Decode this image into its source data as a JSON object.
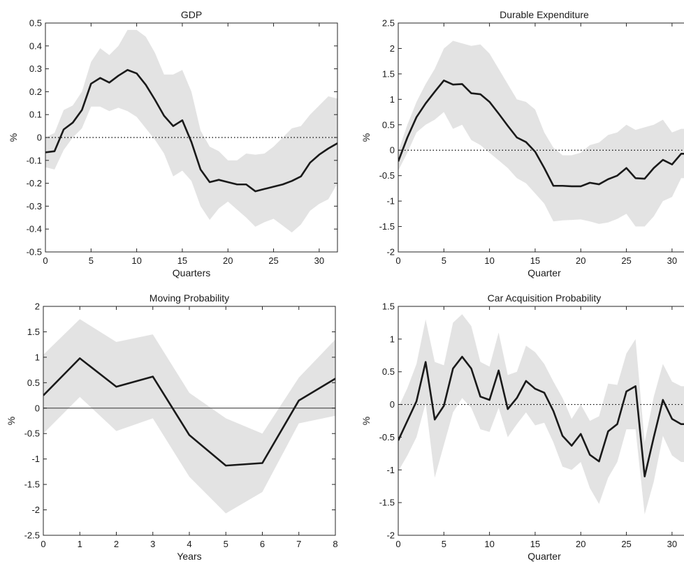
{
  "chart_data": [
    {
      "type": "line",
      "title": "GDP",
      "xlabel": "Quarters",
      "ylabel": "%",
      "xlim": [
        0,
        32
      ],
      "ylim": [
        -0.5,
        0.5
      ],
      "xticks": [
        0,
        5,
        10,
        15,
        20,
        25,
        30
      ],
      "yticks": [
        -0.5,
        -0.4,
        -0.3,
        -0.2,
        -0.1,
        0,
        0.1,
        0.2,
        0.3,
        0.4,
        0.5
      ],
      "ytick_labels": [
        "-0.5",
        "-0.4",
        "-0.3",
        "-0.2",
        "-0.1",
        "0",
        "0.1",
        "0.2",
        "0.3",
        "0.4",
        "0.5"
      ],
      "zero_line": "dotted",
      "grid": false,
      "x": [
        0,
        1,
        2,
        3,
        4,
        5,
        6,
        7,
        8,
        9,
        10,
        11,
        12,
        13,
        14,
        15,
        16,
        17,
        18,
        19,
        20,
        21,
        22,
        23,
        24,
        25,
        26,
        27,
        28,
        29,
        30,
        31,
        32
      ],
      "series": [
        {
          "values": [
            -0.065,
            -0.06,
            0.035,
            0.065,
            0.12,
            0.235,
            0.26,
            0.24,
            0.27,
            0.295,
            0.28,
            0.23,
            0.165,
            0.095,
            0.05,
            0.075,
            -0.02,
            -0.14,
            -0.195,
            -0.185,
            -0.195,
            -0.205,
            -0.205,
            -0.235,
            -0.225,
            -0.215,
            -0.205,
            -0.19,
            -0.17,
            -0.11,
            -0.075,
            -0.048,
            -0.025
          ]
        }
      ],
      "band": {
        "upper": [
          0.0,
          0.02,
          0.12,
          0.14,
          0.2,
          0.33,
          0.39,
          0.36,
          0.4,
          0.47,
          0.47,
          0.44,
          0.37,
          0.275,
          0.275,
          0.295,
          0.2,
          0.03,
          -0.04,
          -0.06,
          -0.1,
          -0.1,
          -0.07,
          -0.075,
          -0.07,
          -0.04,
          0.0,
          0.04,
          0.05,
          0.1,
          0.14,
          0.18,
          0.17
        ],
        "lower": [
          -0.13,
          -0.14,
          -0.055,
          0.0,
          0.04,
          0.135,
          0.135,
          0.115,
          0.13,
          0.115,
          0.09,
          0.04,
          -0.01,
          -0.07,
          -0.17,
          -0.145,
          -0.19,
          -0.3,
          -0.36,
          -0.31,
          -0.28,
          -0.315,
          -0.35,
          -0.39,
          -0.37,
          -0.355,
          -0.385,
          -0.415,
          -0.38,
          -0.32,
          -0.29,
          -0.27,
          -0.2
        ]
      }
    },
    {
      "type": "line",
      "title": "Durable Expenditure",
      "xlabel": "Quarter",
      "ylabel": "%",
      "xlim": [
        0,
        32
      ],
      "ylim": [
        -2,
        2.5
      ],
      "xticks": [
        0,
        5,
        10,
        15,
        20,
        25,
        30
      ],
      "yticks": [
        -2,
        -1.5,
        -1,
        -0.5,
        0,
        0.5,
        1,
        1.5,
        2,
        2.5
      ],
      "ytick_labels": [
        "-2",
        "-1.5",
        "-1",
        "-0.5",
        "0",
        "0.5",
        "1",
        "1.5",
        "2",
        "2.5"
      ],
      "zero_line": "dotted",
      "grid": false,
      "x": [
        0,
        1,
        2,
        3,
        4,
        5,
        6,
        7,
        8,
        9,
        10,
        11,
        12,
        13,
        14,
        15,
        16,
        17,
        18,
        19,
        20,
        21,
        22,
        23,
        24,
        25,
        26,
        27,
        28,
        29,
        30,
        31,
        32
      ],
      "series": [
        {
          "values": [
            -0.22,
            0.25,
            0.65,
            0.92,
            1.15,
            1.37,
            1.29,
            1.3,
            1.12,
            1.1,
            0.95,
            0.72,
            0.48,
            0.25,
            0.16,
            -0.03,
            -0.35,
            -0.7,
            -0.7,
            -0.71,
            -0.71,
            -0.64,
            -0.67,
            -0.57,
            -0.5,
            -0.35,
            -0.55,
            -0.56,
            -0.35,
            -0.19,
            -0.28,
            -0.07,
            -0.07
          ]
        }
      ],
      "band": {
        "upper": [
          -0.02,
          0.5,
          0.95,
          1.3,
          1.6,
          2.0,
          2.15,
          2.1,
          2.05,
          2.08,
          1.9,
          1.6,
          1.3,
          1.0,
          0.95,
          0.8,
          0.35,
          0.05,
          -0.1,
          -0.1,
          -0.05,
          0.1,
          0.15,
          0.3,
          0.35,
          0.5,
          0.4,
          0.45,
          0.5,
          0.6,
          0.35,
          0.42,
          0.42
        ],
        "lower": [
          -0.4,
          -0.05,
          0.35,
          0.5,
          0.6,
          0.75,
          0.42,
          0.5,
          0.2,
          0.1,
          -0.05,
          -0.2,
          -0.35,
          -0.55,
          -0.65,
          -0.85,
          -1.05,
          -1.4,
          -1.38,
          -1.37,
          -1.36,
          -1.4,
          -1.45,
          -1.42,
          -1.35,
          -1.25,
          -1.5,
          -1.5,
          -1.3,
          -1.0,
          -0.92,
          -0.55,
          -0.55
        ]
      }
    },
    {
      "type": "line",
      "title": "Moving Probability",
      "xlabel": "Years",
      "ylabel": "%",
      "xlim": [
        0,
        8
      ],
      "ylim": [
        -2.5,
        2
      ],
      "xticks": [
        0,
        1,
        2,
        3,
        4,
        5,
        6,
        7,
        8
      ],
      "yticks": [
        -2.5,
        -2,
        -1.5,
        -1,
        -0.5,
        0,
        0.5,
        1,
        1.5,
        2
      ],
      "ytick_labels": [
        "-2.5",
        "-2",
        "-1.5",
        "-1",
        "-0.5",
        "0",
        "0.5",
        "1",
        "1.5",
        "2"
      ],
      "zero_line": "solid",
      "grid": false,
      "x": [
        0,
        1,
        2,
        3,
        4,
        5,
        6,
        7,
        8
      ],
      "series": [
        {
          "values": [
            0.25,
            0.98,
            0.42,
            0.62,
            -0.53,
            -1.13,
            -1.08,
            0.15,
            0.58
          ]
        }
      ],
      "band": {
        "upper": [
          1.05,
          1.75,
          1.3,
          1.45,
          0.3,
          -0.2,
          -0.5,
          0.6,
          1.35
        ],
        "lower": [
          -0.5,
          0.22,
          -0.45,
          -0.2,
          -1.35,
          -2.07,
          -1.65,
          -0.3,
          -0.15
        ]
      }
    },
    {
      "type": "line",
      "title": "Car Acquisition Probability",
      "xlabel": "Quarter",
      "ylabel": "%",
      "xlim": [
        0,
        32
      ],
      "ylim": [
        -2,
        1.5
      ],
      "xticks": [
        0,
        5,
        10,
        15,
        20,
        25,
        30
      ],
      "yticks": [
        -2,
        -1.5,
        -1,
        -0.5,
        0,
        0.5,
        1,
        1.5
      ],
      "ytick_labels": [
        "-2",
        "-1.5",
        "-1",
        "-0.5",
        "0",
        "0.5",
        "1",
        "1.5"
      ],
      "zero_line": "dotted",
      "grid": false,
      "x": [
        0,
        1,
        2,
        3,
        4,
        5,
        6,
        7,
        8,
        9,
        10,
        11,
        12,
        13,
        14,
        15,
        16,
        17,
        18,
        19,
        20,
        21,
        22,
        23,
        24,
        25,
        26,
        27,
        28,
        29,
        30,
        31,
        32
      ],
      "series": [
        {
          "values": [
            -0.55,
            -0.25,
            0.05,
            0.65,
            -0.23,
            -0.02,
            0.55,
            0.73,
            0.55,
            0.12,
            0.07,
            0.52,
            -0.07,
            0.1,
            0.36,
            0.24,
            0.18,
            -0.1,
            -0.48,
            -0.63,
            -0.45,
            -0.77,
            -0.87,
            -0.41,
            -0.3,
            0.2,
            0.28,
            -1.1,
            -0.5,
            0.07,
            -0.22,
            -0.3,
            -0.3
          ]
        }
      ],
      "band": {
        "upper": [
          -0.05,
          0.25,
          0.62,
          1.3,
          0.65,
          0.6,
          1.25,
          1.38,
          1.2,
          0.65,
          0.58,
          1.1,
          0.45,
          0.5,
          0.9,
          0.8,
          0.62,
          0.35,
          0.1,
          -0.22,
          0.0,
          -0.25,
          -0.18,
          0.32,
          0.3,
          0.78,
          1.0,
          -0.58,
          0.12,
          0.62,
          0.35,
          0.28,
          0.28
        ],
        "lower": [
          -1.02,
          -0.78,
          -0.5,
          0.02,
          -1.12,
          -0.62,
          -0.12,
          0.1,
          -0.05,
          -0.38,
          -0.42,
          -0.05,
          -0.5,
          -0.3,
          -0.12,
          -0.32,
          -0.28,
          -0.58,
          -0.95,
          -1.0,
          -0.88,
          -1.28,
          -1.52,
          -1.12,
          -0.88,
          -0.38,
          -0.38,
          -1.68,
          -1.18,
          -0.48,
          -0.78,
          -0.88,
          -0.88
        ]
      }
    }
  ]
}
